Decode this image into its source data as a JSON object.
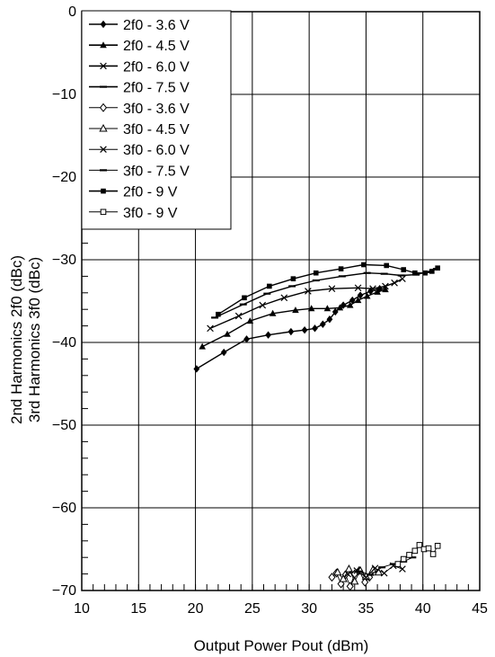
{
  "chart_data": {
    "type": "line",
    "xlabel": "Output Power  Pout (dBm)",
    "ylabel_line1": "2nd Harmonics  2f0 (dBc)",
    "ylabel_line2": "3rd Harmonics  3f0 (dBc)",
    "xlim": [
      10,
      45
    ],
    "ylim": [
      -70,
      0
    ],
    "xticks": [
      10,
      15,
      20,
      25,
      30,
      35,
      40,
      45
    ],
    "yticks": [
      0,
      -10,
      -20,
      -30,
      -40,
      -50,
      -60,
      -70
    ],
    "xtick_labels": [
      "10",
      "15",
      "20",
      "25",
      "30",
      "35",
      "40",
      "45"
    ],
    "ytick_labels": [
      "0",
      "−10",
      "−20",
      "−30",
      "−40",
      "−50",
      "−60",
      "−70"
    ],
    "grid": true,
    "legend_position": "top-left",
    "series": [
      {
        "name": "2f0 - 3.6 V",
        "marker": "filled-diamond",
        "x": [
          20.1,
          22.5,
          24.5,
          26.4,
          28.4,
          29.6,
          30.5,
          31.2,
          31.8,
          32.3,
          33.0,
          33.8,
          34.5,
          35.4,
          36.2
        ],
        "y": [
          -43.2,
          -41.2,
          -39.6,
          -39.1,
          -38.7,
          -38.5,
          -38.3,
          -37.8,
          -37.2,
          -36.3,
          -35.5,
          -34.9,
          -34.3,
          -33.8,
          -33.5
        ]
      },
      {
        "name": "2f0 - 4.5 V",
        "marker": "filled-triangle",
        "x": [
          20.6,
          22.8,
          24.8,
          26.8,
          28.8,
          30.2,
          31.6,
          32.7,
          33.6,
          34.3,
          35.1,
          36.0,
          36.7
        ],
        "y": [
          -40.5,
          -39.0,
          -37.4,
          -36.5,
          -36.1,
          -35.9,
          -35.9,
          -35.8,
          -35.5,
          -34.9,
          -34.4,
          -33.9,
          -33.6
        ]
      },
      {
        "name": "2f0 - 6.0 V",
        "marker": "x",
        "x": [
          21.3,
          23.8,
          25.9,
          27.8,
          29.9,
          32.0,
          34.3,
          35.6,
          36.7,
          37.5,
          38.2
        ],
        "y": [
          -38.3,
          -36.8,
          -35.5,
          -34.6,
          -33.8,
          -33.5,
          -33.4,
          -33.5,
          -33.2,
          -32.8,
          -32.3
        ]
      },
      {
        "name": "2f0 - 7.5 V",
        "marker": "dash",
        "x": [
          21.7,
          24.2,
          26.3,
          28.5,
          30.6,
          32.9,
          35.1,
          36.6,
          38.1,
          39.4,
          40.3,
          41.2
        ],
        "y": [
          -37.0,
          -35.4,
          -34.1,
          -33.2,
          -32.5,
          -32.0,
          -31.6,
          -31.7,
          -31.9,
          -31.8,
          -31.5,
          -31.1
        ]
      },
      {
        "name": "2f0 - 9 V",
        "marker": "filled-square",
        "x": [
          22.0,
          24.3,
          26.5,
          28.6,
          30.6,
          32.8,
          34.8,
          36.8,
          38.3,
          39.3,
          40.2,
          40.8,
          41.3
        ],
        "y": [
          -36.6,
          -34.6,
          -33.2,
          -32.3,
          -31.6,
          -31.1,
          -30.6,
          -30.7,
          -31.2,
          -31.6,
          -31.6,
          -31.4,
          -31.0
        ]
      },
      {
        "name": "3f0 - 3.6 V",
        "marker": "open-diamond",
        "x": [
          32.0,
          32.4,
          32.8,
          33.2,
          33.6,
          34.0,
          34.4,
          34.9,
          35.3
        ],
        "y": [
          -68.4,
          -67.9,
          -69.2,
          -68.1,
          -69.5,
          -68.0,
          -67.6,
          -69.0,
          -68.4
        ]
      },
      {
        "name": "3f0 - 4.5 V",
        "marker": "open-triangle",
        "x": [
          32.5,
          33.0,
          33.5,
          34.0,
          34.5,
          35.0,
          35.6,
          36.1
        ],
        "y": [
          -67.8,
          -68.6,
          -67.4,
          -68.9,
          -67.6,
          -68.3,
          -67.5,
          -67.8
        ]
      },
      {
        "name": "3f0 - 6.0 V",
        "marker": "x",
        "x": [
          33.4,
          34.2,
          35.0,
          35.8,
          36.6,
          37.4,
          38.2
        ],
        "y": [
          -68.0,
          -67.6,
          -68.4,
          -67.3,
          -67.9,
          -67.0,
          -67.4
        ]
      },
      {
        "name": "3f0 - 7.5 V",
        "marker": "dash",
        "x": [
          34.4,
          35.4,
          36.4,
          37.4,
          38.3,
          39.1
        ],
        "y": [
          -67.7,
          -68.1,
          -67.2,
          -66.8,
          -66.5,
          -66.0
        ]
      },
      {
        "name": "3f0 - 9 V",
        "marker": "open-square",
        "x": [
          37.8,
          38.3,
          38.8,
          39.3,
          39.7,
          40.1,
          40.5,
          40.9,
          41.3
        ],
        "y": [
          -66.8,
          -66.2,
          -65.7,
          -65.2,
          -64.5,
          -65.0,
          -64.9,
          -65.6,
          -64.6
        ]
      }
    ]
  }
}
